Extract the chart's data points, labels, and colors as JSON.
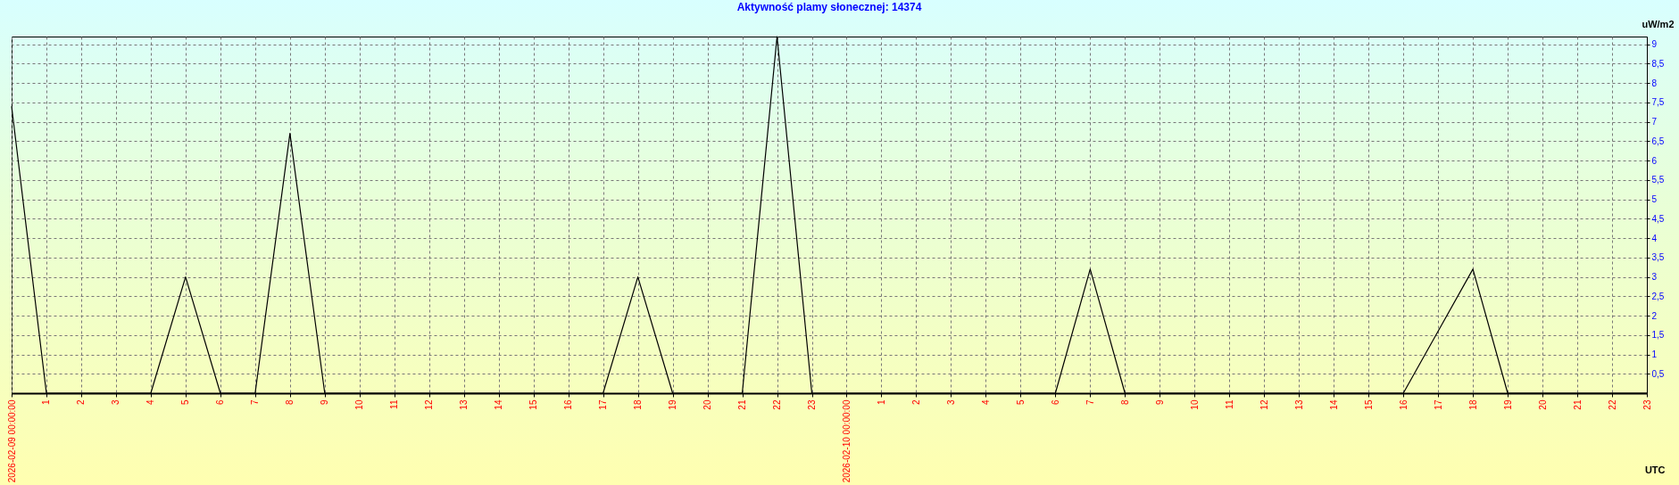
{
  "chart_data": {
    "type": "line",
    "title": "Aktywność plamy słonecznej: 14374",
    "xlabel": "UTC",
    "ylabel": "uW/m2",
    "x": [
      "2026-02-09T00:00",
      "2026-02-09T01:00",
      "2026-02-09T02:00",
      "2026-02-09T03:00",
      "2026-02-09T04:00",
      "2026-02-09T05:00",
      "2026-02-09T06:00",
      "2026-02-09T07:00",
      "2026-02-09T08:00",
      "2026-02-09T09:00",
      "2026-02-09T10:00",
      "2026-02-09T11:00",
      "2026-02-09T12:00",
      "2026-02-09T13:00",
      "2026-02-09T14:00",
      "2026-02-09T15:00",
      "2026-02-09T16:00",
      "2026-02-09T17:00",
      "2026-02-09T18:00",
      "2026-02-09T19:00",
      "2026-02-09T20:00",
      "2026-02-09T21:00",
      "2026-02-09T22:00",
      "2026-02-09T23:00",
      "2026-02-10T00:00",
      "2026-02-10T01:00",
      "2026-02-10T02:00",
      "2026-02-10T03:00",
      "2026-02-10T04:00",
      "2026-02-10T05:00",
      "2026-02-10T06:00",
      "2026-02-10T07:00",
      "2026-02-10T08:00",
      "2026-02-10T09:00",
      "2026-02-10T10:00",
      "2026-02-10T11:00",
      "2026-02-10T12:00",
      "2026-02-10T13:00",
      "2026-02-10T14:00",
      "2026-02-10T15:00",
      "2026-02-10T16:00",
      "2026-02-10T17:00",
      "2026-02-10T18:00",
      "2026-02-10T19:00",
      "2026-02-10T20:00",
      "2026-02-10T21:00",
      "2026-02-10T22:00",
      "2026-02-10T23:00"
    ],
    "series": [
      {
        "color": "#000000",
        "values": [
          7.4,
          0,
          0,
          0,
          0,
          3,
          0,
          0,
          6.7,
          0,
          0,
          0,
          0,
          0,
          0,
          0,
          0,
          0,
          3,
          0,
          0,
          0,
          9.2,
          0,
          0,
          0,
          0,
          0,
          0,
          0,
          0,
          3.2,
          0,
          0,
          0,
          0,
          0,
          0,
          0,
          0,
          0,
          1.6,
          3.2,
          0,
          0,
          0,
          0,
          0
        ]
      }
    ],
    "xlim": [
      "2026-02-09T00:00",
      "2026-02-10T23:00"
    ],
    "xticks": [
      {
        "value": "2026-02-09T00:00",
        "label": "2026-02-09 00:00:00"
      },
      {
        "value": "2026-02-09T01:00",
        "label": "1"
      },
      {
        "value": "2026-02-09T02:00",
        "label": "2"
      },
      {
        "value": "2026-02-09T03:00",
        "label": "3"
      },
      {
        "value": "2026-02-09T04:00",
        "label": "4"
      },
      {
        "value": "2026-02-09T05:00",
        "label": "5"
      },
      {
        "value": "2026-02-09T06:00",
        "label": "6"
      },
      {
        "value": "2026-02-09T07:00",
        "label": "7"
      },
      {
        "value": "2026-02-09T08:00",
        "label": "8"
      },
      {
        "value": "2026-02-09T09:00",
        "label": "9"
      },
      {
        "value": "2026-02-09T10:00",
        "label": "10"
      },
      {
        "value": "2026-02-09T11:00",
        "label": "11"
      },
      {
        "value": "2026-02-09T12:00",
        "label": "12"
      },
      {
        "value": "2026-02-09T13:00",
        "label": "13"
      },
      {
        "value": "2026-02-09T14:00",
        "label": "14"
      },
      {
        "value": "2026-02-09T15:00",
        "label": "15"
      },
      {
        "value": "2026-02-09T16:00",
        "label": "16"
      },
      {
        "value": "2026-02-09T17:00",
        "label": "17"
      },
      {
        "value": "2026-02-09T18:00",
        "label": "18"
      },
      {
        "value": "2026-02-09T19:00",
        "label": "19"
      },
      {
        "value": "2026-02-09T20:00",
        "label": "20"
      },
      {
        "value": "2026-02-09T21:00",
        "label": "21"
      },
      {
        "value": "2026-02-09T22:00",
        "label": "22"
      },
      {
        "value": "2026-02-09T23:00",
        "label": "23"
      },
      {
        "value": "2026-02-10T00:00",
        "label": "2026-02-10 00:00:00"
      },
      {
        "value": "2026-02-10T01:00",
        "label": "1"
      },
      {
        "value": "2026-02-10T02:00",
        "label": "2"
      },
      {
        "value": "2026-02-10T03:00",
        "label": "3"
      },
      {
        "value": "2026-02-10T04:00",
        "label": "4"
      },
      {
        "value": "2026-02-10T05:00",
        "label": "5"
      },
      {
        "value": "2026-02-10T06:00",
        "label": "6"
      },
      {
        "value": "2026-02-10T07:00",
        "label": "7"
      },
      {
        "value": "2026-02-10T08:00",
        "label": "8"
      },
      {
        "value": "2026-02-10T09:00",
        "label": "9"
      },
      {
        "value": "2026-02-10T10:00",
        "label": "10"
      },
      {
        "value": "2026-02-10T11:00",
        "label": "11"
      },
      {
        "value": "2026-02-10T12:00",
        "label": "12"
      },
      {
        "value": "2026-02-10T13:00",
        "label": "13"
      },
      {
        "value": "2026-02-10T14:00",
        "label": "14"
      },
      {
        "value": "2026-02-10T15:00",
        "label": "15"
      },
      {
        "value": "2026-02-10T16:00",
        "label": "16"
      },
      {
        "value": "2026-02-10T17:00",
        "label": "17"
      },
      {
        "value": "2026-02-10T18:00",
        "label": "18"
      },
      {
        "value": "2026-02-10T19:00",
        "label": "19"
      },
      {
        "value": "2026-02-10T20:00",
        "label": "20"
      },
      {
        "value": "2026-02-10T21:00",
        "label": "21"
      },
      {
        "value": "2026-02-10T22:00",
        "label": "22"
      },
      {
        "value": "2026-02-10T23:00",
        "label": "23"
      }
    ],
    "ylim": [
      0,
      9.2
    ],
    "yticks": [
      {
        "value": 0.5,
        "label": "0,5"
      },
      1,
      {
        "value": 1.5,
        "label": "1,5"
      },
      2,
      {
        "value": 2.5,
        "label": "2,5"
      },
      3,
      {
        "value": 3.5,
        "label": "3,5"
      },
      4,
      {
        "value": 4.5,
        "label": "4,5"
      },
      5,
      {
        "value": 5.5,
        "label": "5,5"
      },
      6,
      {
        "value": 6.5,
        "label": "6,5"
      },
      7,
      {
        "value": 7.5,
        "label": "7,5"
      },
      8,
      {
        "value": 8.5,
        "label": "8,5"
      },
      9
    ],
    "grid": true,
    "marker": "none",
    "line_style": "solid"
  }
}
